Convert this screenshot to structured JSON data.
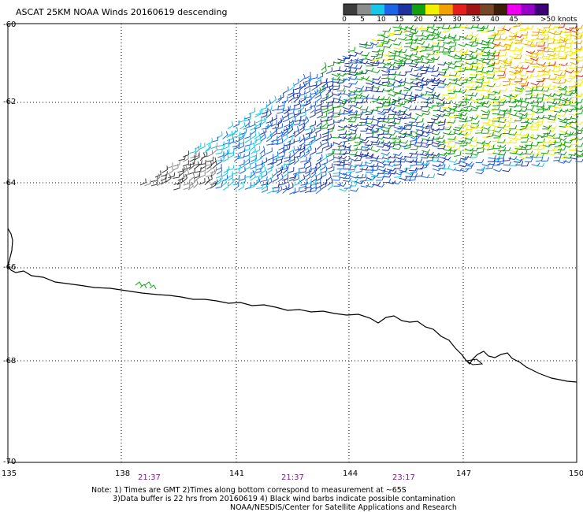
{
  "title": "ASCAT 25KM NOAA Winds 20160619 descending",
  "legend": {
    "labels": [
      "0",
      "5",
      "10",
      "15",
      "20",
      "25",
      "30",
      "35",
      "40",
      "45",
      ">50 knots"
    ],
    "colors": [
      "#3c3c3c",
      "#8c8c8c",
      "#14c8e6",
      "#1e64e6",
      "#1e32a0",
      "#10a010",
      "#f0f000",
      "#f0a000",
      "#e61e1e",
      "#a01414",
      "#784628",
      "#3c1e0a",
      "#f000f0",
      "#9600c8",
      "#3c0078"
    ]
  },
  "axes": {
    "lat_labels": [
      "-60",
      "-62",
      "-64",
      "-66",
      "-68",
      "-70"
    ],
    "lon_labels": [
      "135",
      "138",
      "141",
      "144",
      "147",
      "150"
    ]
  },
  "time_labels": [
    "21:37",
    "21:37",
    "23:17"
  ],
  "notes": [
    "Note: 1) Times are GMT 2)Times along bottom correspond to measurement at ~65S",
    "3)Data buffer is 22 hrs from 20160619 4) Black wind barbs indicate possible contamination",
    "NOAA/NESDIS/Center for Satellite Applications and Research"
  ]
}
